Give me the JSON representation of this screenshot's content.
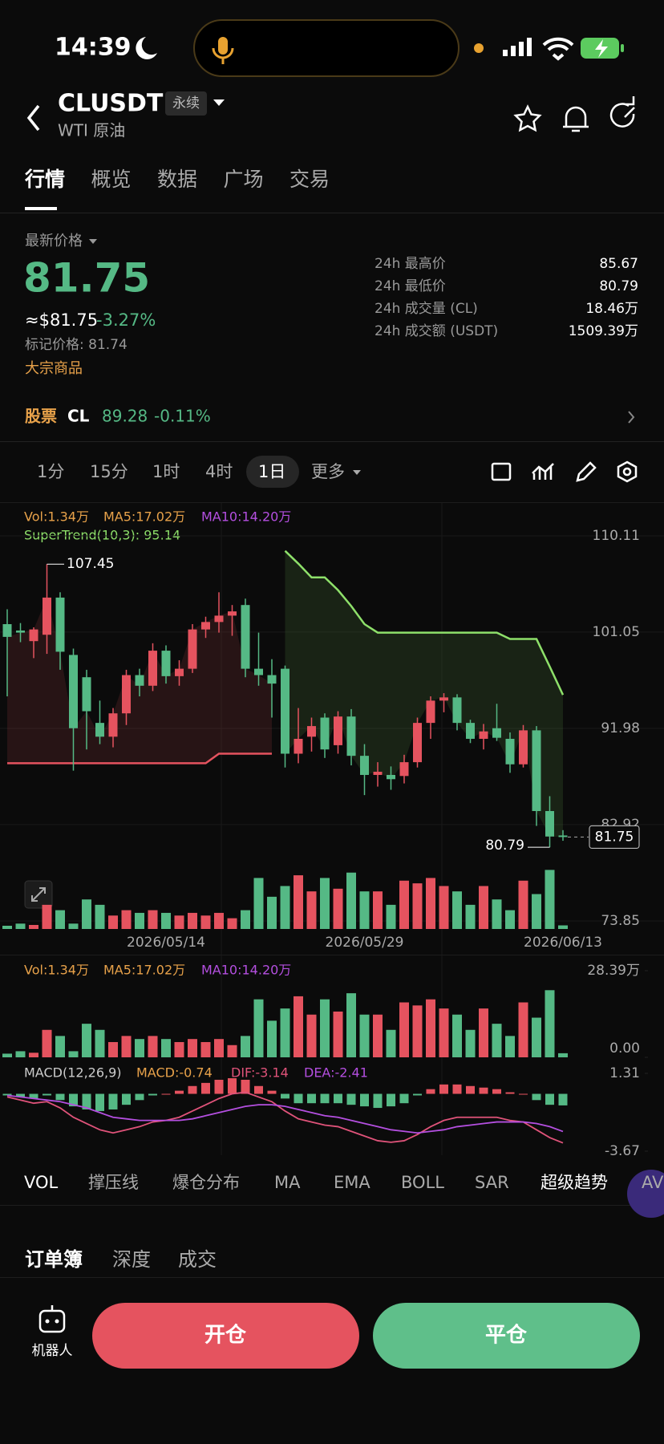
{
  "status_bar": {
    "time": "14:39"
  },
  "header": {
    "symbol": "CLUSDT",
    "badge": "永续",
    "subtitle": "WTI 原油"
  },
  "tabs": [
    "行情",
    "概览",
    "数据",
    "广场",
    "交易"
  ],
  "price": {
    "label": "最新价格",
    "last": "81.75",
    "usd": "≈$81.75",
    "change": "-3.27%",
    "mark": "标记价格: 81.74",
    "tag": "大宗商品"
  },
  "stats": [
    [
      "24h 最高价",
      "85.67"
    ],
    [
      "24h 最低价",
      "80.79"
    ],
    [
      "24h 成交量 (CL)",
      "18.46万"
    ],
    [
      "24h 成交额 (USDT)",
      "1509.39万"
    ]
  ],
  "stock": {
    "label": "股票",
    "symbol": "CL",
    "price": "89.28",
    "change": "-0.11%"
  },
  "intervals": [
    "1分",
    "15分",
    "1时",
    "4时",
    "1日",
    "更多"
  ],
  "chart_data": {
    "type": "candlestick",
    "legend": [
      "Vol:1.34万",
      "MA5:17.02万",
      "MA10:14.20万"
    ],
    "supertrend_label": "SuperTrend(10,3): 95.14",
    "colors": {
      "up": "#e5535f",
      "down": "#55b985",
      "support": "#e5535f",
      "resistance": "#8ee06a"
    },
    "categories": [
      null,
      null,
      null,
      null,
      null,
      null,
      null,
      null,
      null,
      null,
      null,
      null,
      "2026/05/14",
      null,
      null,
      null,
      null,
      null,
      null,
      null,
      null,
      null,
      null,
      null,
      null,
      null,
      null,
      "2026/05/29",
      null,
      null,
      null,
      null,
      null,
      null,
      null,
      null,
      null,
      null,
      null,
      null,
      null,
      null,
      "2026/06/13"
    ],
    "open": [
      101.8,
      101.2,
      100.2,
      100.8,
      104.3,
      98.9,
      96.8,
      92.5,
      91.2,
      93.4,
      97.0,
      96.0,
      99.3,
      96.9,
      97.6,
      101.3,
      102.0,
      102.6,
      103.6,
      97.6,
      97.0,
      97.6,
      89.6,
      91.2,
      93.0,
      90.4,
      93.1,
      89.4,
      87.6,
      87.6,
      87.5,
      88.8,
      92.5,
      94.6,
      94.9,
      92.5,
      91.0,
      92.0,
      91.0,
      88.6,
      91.8,
      84.2,
      81.9
    ],
    "high": [
      103.2,
      101.9,
      101.5,
      107.45,
      104.8,
      99.5,
      97.5,
      94.6,
      93.9,
      97.5,
      97.6,
      100.0,
      99.8,
      98.4,
      101.8,
      102.5,
      104.8,
      103.6,
      104.2,
      101.0,
      98.5,
      97.9,
      93.9,
      93.0,
      93.4,
      93.6,
      93.8,
      90.5,
      88.8,
      88.4,
      89.5,
      93.0,
      95.0,
      95.3,
      95.2,
      92.8,
      92.4,
      94.3,
      91.6,
      92.3,
      92.2,
      85.6,
      82.4
    ],
    "low": [
      95.0,
      100.1,
      98.6,
      99.0,
      97.5,
      88.0,
      90.0,
      90.5,
      90.2,
      92.3,
      95.0,
      95.5,
      96.2,
      96.0,
      97.2,
      100.5,
      101.0,
      100.7,
      96.8,
      96.0,
      93.0,
      88.3,
      88.7,
      89.8,
      89.2,
      89.6,
      88.5,
      85.7,
      86.5,
      86.2,
      86.8,
      88.3,
      91.0,
      93.5,
      91.8,
      90.6,
      90.0,
      90.8,
      87.8,
      88.3,
      82.8,
      80.79,
      81.4
    ],
    "close": [
      100.6,
      101.0,
      101.3,
      104.3,
      99.2,
      92.0,
      93.6,
      91.2,
      93.4,
      97.0,
      96.0,
      99.3,
      96.9,
      97.6,
      101.3,
      102.0,
      102.6,
      103.0,
      97.6,
      97.0,
      96.2,
      89.6,
      91.0,
      92.2,
      90.0,
      93.1,
      89.4,
      87.6,
      87.9,
      87.2,
      88.8,
      92.5,
      94.6,
      94.9,
      92.5,
      91.0,
      91.7,
      91.1,
      88.6,
      91.8,
      84.2,
      81.8,
      81.75
    ],
    "ylim": [
      73.85,
      110.11
    ],
    "yticks": [
      110.11,
      101.05,
      91.98,
      82.92,
      73.85
    ],
    "supertrend_support": [
      88.7,
      88.7,
      88.7,
      88.7,
      88.7,
      88.7,
      88.7,
      88.7,
      88.7,
      88.7,
      88.7,
      88.7,
      88.7,
      88.7,
      88.7,
      88.7,
      89.6,
      89.6,
      89.6,
      89.6,
      89.6,
      null,
      null,
      null,
      null,
      null,
      null,
      null,
      null,
      null,
      null,
      null,
      null,
      null,
      null,
      null,
      null,
      null,
      null,
      null,
      null,
      null,
      null
    ],
    "supertrend_resistance": [
      null,
      null,
      null,
      null,
      null,
      null,
      null,
      null,
      null,
      null,
      null,
      null,
      null,
      null,
      null,
      null,
      null,
      null,
      null,
      null,
      null,
      108.7,
      107.5,
      106.2,
      106.2,
      105,
      103.5,
      101.8,
      101.0,
      101.0,
      101.0,
      101.0,
      101.0,
      101.0,
      101.0,
      101.0,
      101.0,
      101.0,
      100.4,
      100.4,
      100.4,
      97.8,
      95.14
    ],
    "volume": [
      1.2,
      2,
      1.5,
      9,
      7,
      2,
      11,
      9,
      5,
      7,
      6,
      7,
      6,
      5,
      6,
      5,
      6,
      4,
      7,
      19,
      12,
      16,
      20,
      14,
      19,
      15,
      21,
      14,
      14,
      9,
      18,
      17,
      19,
      16,
      14,
      9,
      16,
      11,
      7,
      18,
      13,
      22,
      1.34
    ],
    "volume_panel": {
      "legend": [
        "Vol:1.34万",
        "MA5:17.02万",
        "MA10:14.20万"
      ],
      "ylim": [
        0,
        28.39
      ],
      "yticks": [
        {
          "value": 28.39,
          "label": "28.39万"
        },
        {
          "value": 0,
          "label": "0.00"
        }
      ]
    },
    "macd_panel": {
      "legend": [
        "MACD(12,26,9)",
        "MACD:-0.74",
        "DIF:-3.14",
        "DEA:-2.41"
      ],
      "ylim": [
        -3.67,
        1.31
      ],
      "yticks": [
        1.31,
        -3.67
      ],
      "hist": [
        -0.1,
        -0.2,
        -0.3,
        -0.1,
        -0.4,
        -0.8,
        -1.0,
        -1.1,
        -1.0,
        -0.7,
        -0.4,
        -0.1,
        0.0,
        0.2,
        0.5,
        0.7,
        0.9,
        1.0,
        0.9,
        0.5,
        0.2,
        -0.3,
        -0.6,
        -0.6,
        -0.6,
        -0.6,
        -0.7,
        -0.8,
        -0.9,
        -0.8,
        -0.6,
        -0.1,
        0.3,
        0.6,
        0.6,
        0.5,
        0.4,
        0.3,
        0.1,
        0.0,
        -0.4,
        -0.7,
        -0.74
      ],
      "dif": [
        -0.2,
        -0.4,
        -0.6,
        -0.5,
        -0.9,
        -1.5,
        -1.9,
        -2.3,
        -2.5,
        -2.3,
        -2.1,
        -1.8,
        -1.7,
        -1.5,
        -1.1,
        -0.7,
        -0.3,
        0.0,
        0.1,
        -0.2,
        -0.5,
        -1.1,
        -1.6,
        -1.8,
        -2.0,
        -2.1,
        -2.4,
        -2.7,
        -3.0,
        -3.1,
        -3.0,
        -2.6,
        -2.1,
        -1.7,
        -1.5,
        -1.5,
        -1.5,
        -1.5,
        -1.7,
        -1.8,
        -2.3,
        -2.8,
        -3.14
      ],
      "dea": [
        -0.1,
        -0.2,
        -0.3,
        -0.4,
        -0.5,
        -0.7,
        -0.9,
        -1.2,
        -1.5,
        -1.6,
        -1.7,
        -1.7,
        -1.7,
        -1.7,
        -1.6,
        -1.4,
        -1.2,
        -1.0,
        -0.8,
        -0.7,
        -0.7,
        -0.8,
        -1.0,
        -1.2,
        -1.4,
        -1.5,
        -1.7,
        -1.9,
        -2.1,
        -2.3,
        -2.4,
        -2.5,
        -2.4,
        -2.3,
        -2.1,
        -2.0,
        -1.9,
        -1.8,
        -1.8,
        -1.8,
        -1.9,
        -2.1,
        -2.41
      ]
    }
  },
  "indicator_tabs": [
    "VOL",
    "撑压线",
    "爆仓分布",
    "MA",
    "EMA",
    "BOLL",
    "SAR",
    "超级趋势",
    "AV"
  ],
  "orderbook_tabs": [
    "订单簿",
    "深度",
    "成交"
  ],
  "bottom": {
    "robot": "机器人",
    "open": "开仓",
    "close": "平仓"
  }
}
